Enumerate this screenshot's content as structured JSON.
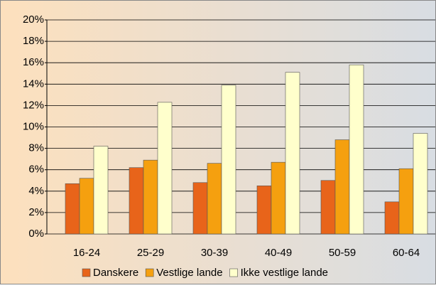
{
  "chart_data": {
    "type": "bar",
    "categories": [
      "16-24",
      "25-29",
      "30-39",
      "40-49",
      "50-59",
      "60-64"
    ],
    "series": [
      {
        "name": "Danskere",
        "color": "#e8641a",
        "values": [
          4.7,
          6.2,
          4.8,
          4.5,
          5.0,
          3.0
        ]
      },
      {
        "name": "Vestlige lande",
        "color": "#f5a00f",
        "values": [
          5.2,
          6.9,
          6.6,
          6.7,
          8.8,
          6.1
        ]
      },
      {
        "name": "Ikke vestlige lande",
        "color": "#ffffcc",
        "values": [
          8.2,
          12.3,
          13.9,
          15.1,
          15.8,
          9.4
        ]
      }
    ],
    "ylim": [
      0,
      20
    ],
    "yticks": [
      {
        "value": 0,
        "label": "0%"
      },
      {
        "value": 2,
        "label": "2%"
      },
      {
        "value": 4,
        "label": "4%"
      },
      {
        "value": 6,
        "label": "6%"
      },
      {
        "value": 8,
        "label": "8%"
      },
      {
        "value": 10,
        "label": "10%"
      },
      {
        "value": 12,
        "label": "12%"
      },
      {
        "value": 14,
        "label": "14%"
      },
      {
        "value": 16,
        "label": "16%"
      },
      {
        "value": 18,
        "label": "18%"
      },
      {
        "value": 20,
        "label": "20%"
      }
    ],
    "grid": true,
    "legend": "bottom"
  }
}
